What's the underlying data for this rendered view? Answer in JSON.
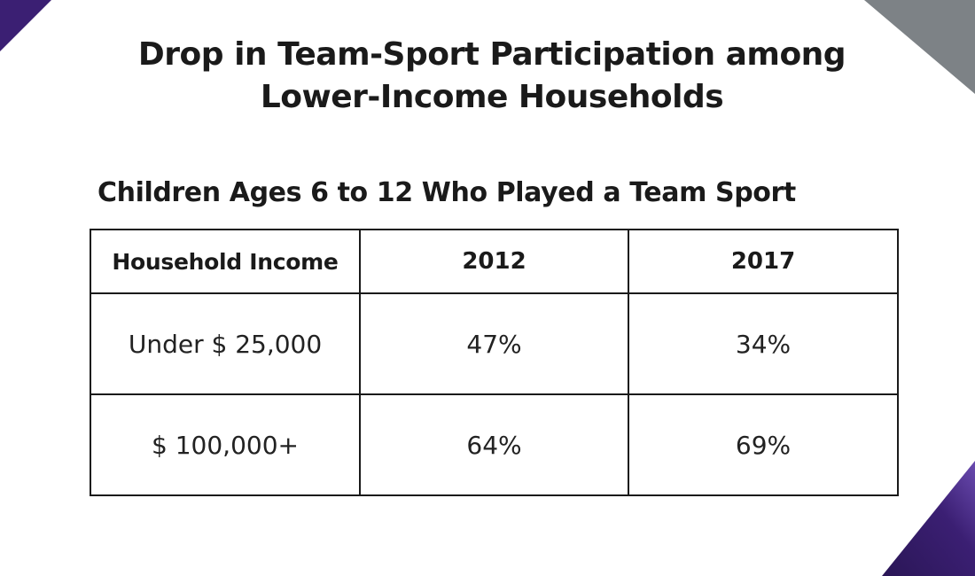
{
  "colors": {
    "accent_purple": "#3b1f73",
    "accent_gray": "#7d8286",
    "text": "#1a1a1a"
  },
  "title": {
    "line1": "Drop in Team-Sport Participation among",
    "line2": "Lower-Income Households"
  },
  "subtitle": "Children Ages 6 to 12 Who Played a Team Sport",
  "table": {
    "headers": [
      "Household Income",
      "2012",
      "2017"
    ],
    "rows": [
      {
        "label": "Under $ 25,000",
        "y2012": "47%",
        "y2017": "34%"
      },
      {
        "label": "$ 100,000+",
        "y2012": "64%",
        "y2017": "69%"
      }
    ]
  },
  "chart_data": {
    "type": "table",
    "title": "Drop in Team-Sport Participation among Lower-Income Households",
    "subtitle": "Children Ages 6 to 12 Who Played a Team Sport",
    "columns": [
      "Household Income",
      "2012",
      "2017"
    ],
    "rows": [
      [
        "Under $ 25,000",
        47,
        34
      ],
      [
        "$ 100,000+",
        64,
        69
      ]
    ],
    "unit": "%"
  }
}
